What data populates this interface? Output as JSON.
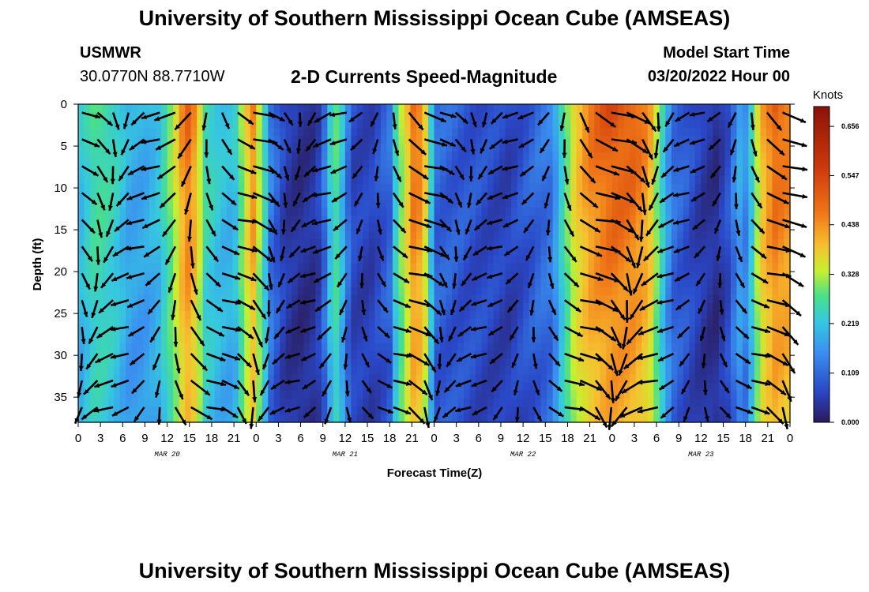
{
  "header": {
    "title": "University of Southern Mississippi Ocean Cube (AMSEAS)",
    "footer_title": "University of Southern Mississippi Ocean Cube (AMSEAS)",
    "station": "USMWR",
    "coords": "30.0770N  88.7710W",
    "subtitle": "2-D Currents Speed-Magnitude",
    "start_label": "Model Start Time",
    "start_time": "03/20/2022 Hour 00"
  },
  "chart_data": {
    "type": "heatmap",
    "title": "2-D Currents Speed-Magnitude",
    "xlabel": "Forecast Time(Z)",
    "ylabel": "Depth (ft)",
    "x_tick_labels": [
      "0",
      "3",
      "6",
      "9",
      "12",
      "15",
      "18",
      "21",
      "0",
      "3",
      "6",
      "9",
      "12",
      "15",
      "18",
      "21",
      "0",
      "3",
      "6",
      "9",
      "12",
      "15",
      "18",
      "21",
      "0",
      "3",
      "6",
      "9",
      "12",
      "15",
      "18",
      "21",
      "0"
    ],
    "xlim_hours": [
      0,
      96
    ],
    "date_labels": [
      {
        "label": "MAR 20",
        "hour": 12
      },
      {
        "label": "MAR 21",
        "hour": 36
      },
      {
        "label": "MAR 22",
        "hour": 60
      },
      {
        "label": "MAR 23",
        "hour": 84
      }
    ],
    "y_tick_labels": [
      "0",
      "5",
      "10",
      "15",
      "20",
      "25",
      "30",
      "35"
    ],
    "ylim_ft": [
      0,
      38
    ],
    "colorbar": {
      "unit": "Knots",
      "ticks": [
        "0.656",
        "0.547",
        "0.438",
        "0.328",
        "0.219",
        "0.109",
        "0.000"
      ],
      "min": 0.0,
      "max": 0.7
    },
    "speed_by_hour": [
      {
        "hour": 0,
        "speed": 0.22
      },
      {
        "hour": 1,
        "speed": 0.26
      },
      {
        "hour": 2,
        "speed": 0.3
      },
      {
        "hour": 3,
        "speed": 0.31
      },
      {
        "hour": 5,
        "speed": 0.27
      },
      {
        "hour": 7,
        "speed": 0.2
      },
      {
        "hour": 9,
        "speed": 0.2
      },
      {
        "hour": 11,
        "speed": 0.24
      },
      {
        "hour": 13,
        "speed": 0.4
      },
      {
        "hour": 14.5,
        "speed": 0.58
      },
      {
        "hour": 16,
        "speed": 0.5
      },
      {
        "hour": 17,
        "speed": 0.3
      },
      {
        "hour": 19,
        "speed": 0.24
      },
      {
        "hour": 21,
        "speed": 0.22
      },
      {
        "hour": 22,
        "speed": 0.35
      },
      {
        "hour": 23.5,
        "speed": 0.55
      },
      {
        "hour": 25,
        "speed": 0.3
      },
      {
        "hour": 26,
        "speed": 0.14
      },
      {
        "hour": 28,
        "speed": 0.06
      },
      {
        "hour": 30,
        "speed": 0.04
      },
      {
        "hour": 32,
        "speed": 0.05
      },
      {
        "hour": 33,
        "speed": 0.1
      },
      {
        "hour": 34,
        "speed": 0.25
      },
      {
        "hour": 35,
        "speed": 0.33
      },
      {
        "hour": 36,
        "speed": 0.16
      },
      {
        "hour": 37,
        "speed": 0.08
      },
      {
        "hour": 39.5,
        "speed": 0.07
      },
      {
        "hour": 42,
        "speed": 0.12
      },
      {
        "hour": 43,
        "speed": 0.3
      },
      {
        "hour": 45.5,
        "speed": 0.6
      },
      {
        "hour": 47,
        "speed": 0.44
      },
      {
        "hour": 48,
        "speed": 0.12
      },
      {
        "hour": 50,
        "speed": 0.11
      },
      {
        "hour": 54,
        "speed": 0.09
      },
      {
        "hour": 58,
        "speed": 0.07
      },
      {
        "hour": 62,
        "speed": 0.12
      },
      {
        "hour": 64,
        "speed": 0.14
      },
      {
        "hour": 65.5,
        "speed": 0.3
      },
      {
        "hour": 67,
        "speed": 0.46
      },
      {
        "hour": 69,
        "speed": 0.55
      },
      {
        "hour": 72,
        "speed": 0.6
      },
      {
        "hour": 75,
        "speed": 0.58
      },
      {
        "hour": 77,
        "speed": 0.52
      },
      {
        "hour": 78.5,
        "speed": 0.3
      },
      {
        "hour": 80,
        "speed": 0.13
      },
      {
        "hour": 82,
        "speed": 0.1
      },
      {
        "hour": 84,
        "speed": 0.06
      },
      {
        "hour": 86,
        "speed": 0.04
      },
      {
        "hour": 88,
        "speed": 0.1
      },
      {
        "hour": 89,
        "speed": 0.2
      },
      {
        "hour": 90,
        "speed": 0.16
      },
      {
        "hour": 91,
        "speed": 0.28
      },
      {
        "hour": 92,
        "speed": 0.48
      },
      {
        "hour": 94,
        "speed": 0.58
      },
      {
        "hour": 96,
        "speed": 0.55
      }
    ]
  },
  "colors": {
    "scale": [
      "#2a1a5a",
      "#2a48c8",
      "#3a8ff0",
      "#35c8e0",
      "#48e08a",
      "#c8ef30",
      "#f7c030",
      "#f07818",
      "#d03a0c",
      "#8a1208"
    ]
  }
}
